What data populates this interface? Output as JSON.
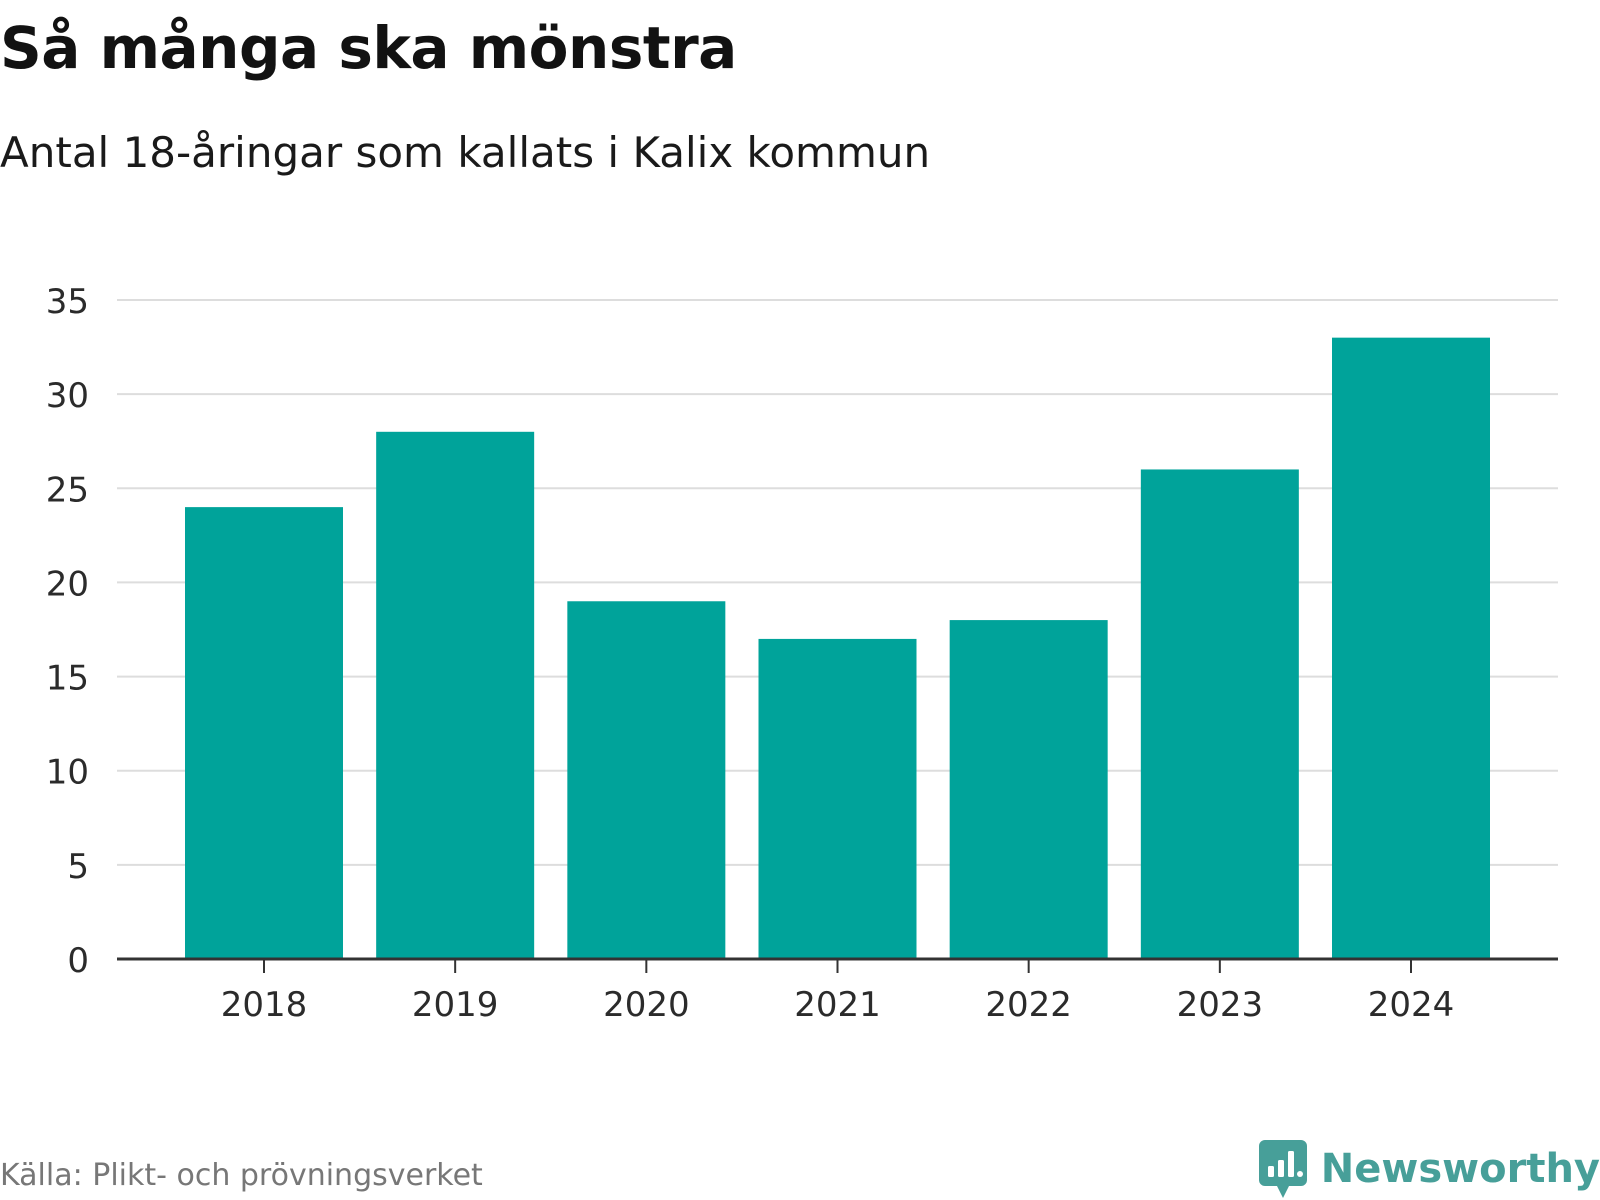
{
  "title": "Så många ska mönstra",
  "subtitle": "Antal 18-åringar som kallats i Kalix kommun",
  "source": "Källa: Plikt- och prövningsverket",
  "brand": {
    "name": "Newsworthy",
    "icon": "newsworthy-logo-icon",
    "color": "#479f99"
  },
  "colors": {
    "bar": "#00a39a",
    "grid": "#dddddd",
    "axis": "#333333"
  },
  "chart_data": {
    "type": "bar",
    "categories": [
      "2018",
      "2019",
      "2020",
      "2021",
      "2022",
      "2023",
      "2024"
    ],
    "values": [
      24,
      28,
      19,
      17,
      18,
      26,
      33
    ],
    "ylim": [
      0,
      35
    ],
    "yticks": [
      0,
      5,
      10,
      15,
      20,
      25,
      30,
      35
    ],
    "grid": true,
    "legend": "none"
  }
}
